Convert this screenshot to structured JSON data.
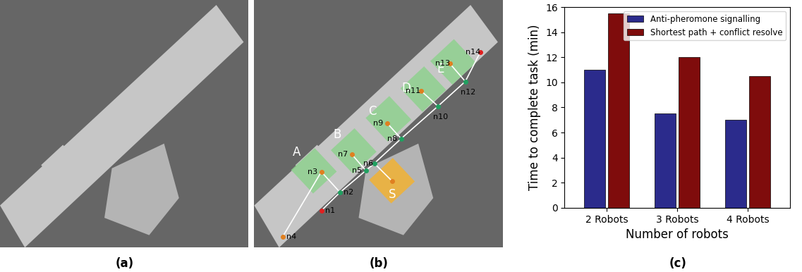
{
  "panel_labels": [
    "(a)",
    "(b)",
    "(c)"
  ],
  "map": {
    "regions": [
      {
        "label": "A",
        "color": "#8fd18f"
      },
      {
        "label": "B",
        "color": "#8fd18f"
      },
      {
        "label": "C",
        "color": "#8fd18f"
      },
      {
        "label": "D",
        "color": "#8fd18f"
      },
      {
        "label": "E",
        "color": "#8fd18f"
      },
      {
        "label": "S",
        "color": "#f2b233"
      }
    ],
    "nodes": [
      {
        "label": "n1",
        "color": "#e02020"
      },
      {
        "label": "n2",
        "color": "#20a060"
      },
      {
        "label": "n3",
        "color": "#e08020"
      },
      {
        "label": "n4",
        "color": "#e08020"
      },
      {
        "label": "n5",
        "color": "#20a060"
      },
      {
        "label": "n6",
        "color": "#20a060"
      },
      {
        "label": "n7",
        "color": "#e08020"
      },
      {
        "label": "n8",
        "color": "#20a060"
      },
      {
        "label": "n9",
        "color": "#e08020"
      },
      {
        "label": "n10",
        "color": "#20a060"
      },
      {
        "label": "n11",
        "color": "#e08020"
      },
      {
        "label": "n12",
        "color": "#20a060"
      },
      {
        "label": "n13",
        "color": "#e08020"
      },
      {
        "label": "n14",
        "color": "#e02020"
      }
    ]
  },
  "chart_data": {
    "type": "bar",
    "x_label": "Number of robots",
    "y_label": "Time to complete task (min)",
    "categories": [
      "2 Robots",
      "3 Robots",
      "4 Robots"
    ],
    "series": [
      {
        "name": "Anti-pheromone signalling",
        "color": "#2b2b8c",
        "values": [
          11,
          7.5,
          7
        ]
      },
      {
        "name": "Shortest path + conflict resolve",
        "color": "#7f0c0c",
        "values": [
          15.5,
          12,
          10.5
        ]
      }
    ],
    "ylim": [
      0,
      16
    ],
    "yticks": [
      0,
      2,
      4,
      6,
      8,
      10,
      12,
      14,
      16
    ],
    "legend": "upper right",
    "grid": false
  }
}
